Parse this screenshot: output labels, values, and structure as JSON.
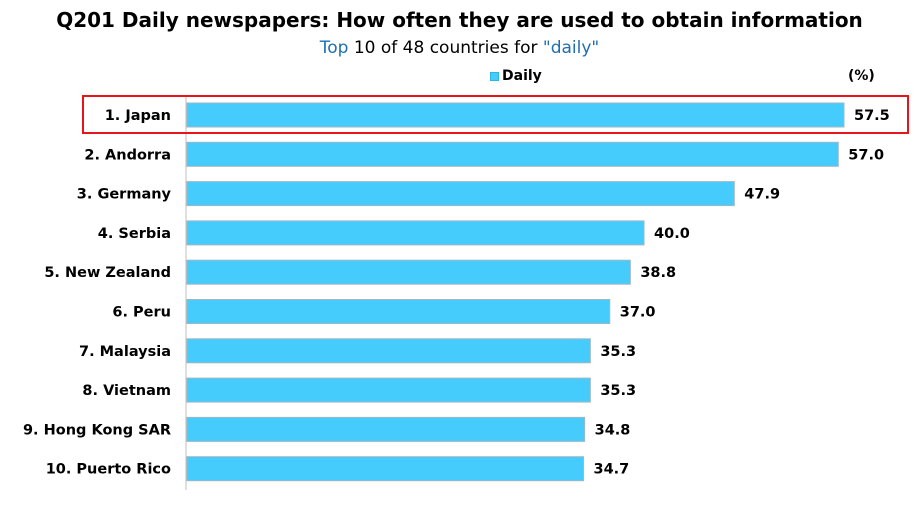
{
  "colors": {
    "bar": "#45ccfc",
    "bar_edge": "#9fb7c4",
    "highlight_box": "#e8141c",
    "accent_text": "#1f6fb0"
  },
  "title": "Q201 Daily newspapers: How often they are used to obtain information",
  "subtitle": {
    "top": "Top",
    "middle": " 10 of 48 countries for ",
    "quoted": "\"daily\""
  },
  "legend": {
    "label": "Daily"
  },
  "unit": "(%)",
  "chart_data": {
    "type": "bar",
    "orientation": "horizontal",
    "categories": [
      "1. Japan",
      "2. Andorra",
      "3. Germany",
      "4. Serbia",
      "5. New Zealand",
      "6. Peru",
      "7. Malaysia",
      "8. Vietnam",
      "9. Hong Kong SAR",
      "10. Puerto Rico"
    ],
    "series": [
      {
        "name": "Daily",
        "values": [
          57.5,
          57.0,
          47.9,
          40.0,
          38.8,
          37.0,
          35.3,
          35.3,
          34.8,
          34.7
        ]
      }
    ],
    "value_labels": [
      "57.5",
      "57.0",
      "47.9",
      "40.0",
      "38.8",
      "37.0",
      "35.3",
      "35.3",
      "34.8",
      "34.7"
    ],
    "xlim": [
      0,
      57.5
    ],
    "highlighted_category": "1. Japan",
    "grid": false,
    "legend_position": "top"
  }
}
